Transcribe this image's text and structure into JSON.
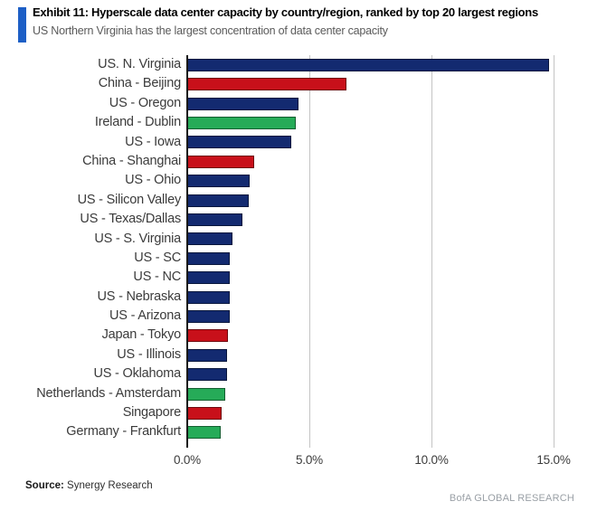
{
  "header": {
    "accent_color": "#1d5fc6"
  },
  "chart_data": {
    "type": "bar",
    "orientation": "horizontal",
    "title": "Exhibit 11: Hyperscale data center capacity by country/region, ranked by top 20 largest regions",
    "subtitle": "US Northern Virginia has the largest concentration of data center capacity",
    "categories": [
      "US. N. Virginia",
      "China - Beijing",
      "US - Oregon",
      "Ireland - Dublin",
      "US - Iowa",
      "China - Shanghai",
      "US - Ohio",
      "US - Silicon Valley",
      "US - Texas/Dallas",
      "US - S. Virginia",
      "US - SC",
      "US - NC",
      "US - Nebraska",
      "US - Arizona",
      "Japan - Tokyo",
      "US - Illinois",
      "US - Oklahoma",
      "Netherlands - Amsterdam",
      "Singapore",
      "Germany - Frankfurt"
    ],
    "values": [
      14.8,
      6.5,
      4.55,
      4.45,
      4.25,
      2.75,
      2.55,
      2.5,
      2.25,
      1.85,
      1.75,
      1.75,
      1.75,
      1.73,
      1.67,
      1.63,
      1.63,
      1.55,
      1.42,
      1.38
    ],
    "unit": "%",
    "bar_colors": [
      "#132a70",
      "#c8101a",
      "#132a70",
      "#26ab58",
      "#132a70",
      "#c8101a",
      "#132a70",
      "#132a70",
      "#132a70",
      "#132a70",
      "#132a70",
      "#132a70",
      "#132a70",
      "#132a70",
      "#c8101a",
      "#132a70",
      "#132a70",
      "#26ab58",
      "#c8101a",
      "#26ab58"
    ],
    "color_legend": {
      "us_regions": "#132a70",
      "asia_regions": "#c8101a",
      "europe_regions": "#26ab58"
    },
    "xtick_labels": [
      "0.0%",
      "5.0%",
      "10.0%",
      "15.0%"
    ],
    "xtick_values": [
      0,
      5,
      10,
      15
    ],
    "xlim": [
      0,
      16
    ],
    "grid": "vertical gridlines at 5% intervals",
    "legend_position": "none",
    "xlabel": "",
    "ylabel": ""
  },
  "footer": {
    "source_label": "Source:",
    "source_value": " Synergy Research",
    "brand": "BofA GLOBAL RESEARCH"
  }
}
